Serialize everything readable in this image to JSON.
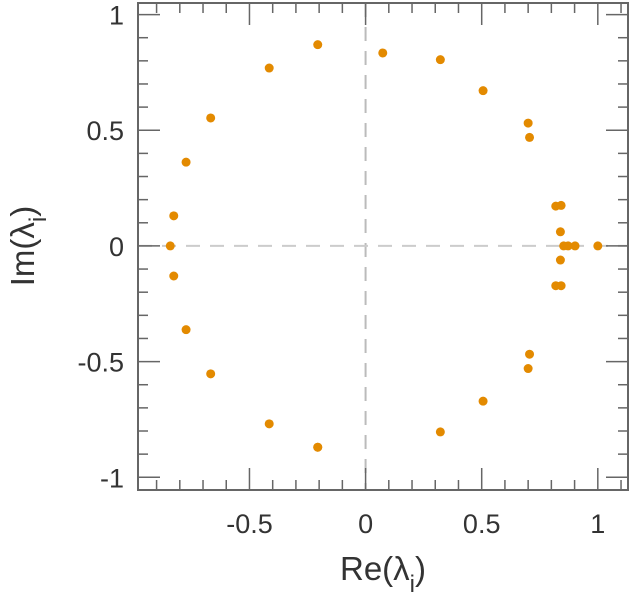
{
  "chart_data": {
    "type": "scatter",
    "title": "",
    "xlabel": "Re(λ",
    "xlabel_sub": "i",
    "ylabel": "Im(λ",
    "ylabel_sub": "i",
    "label_close": ")",
    "xlim": [
      -0.98,
      1.13
    ],
    "ylim": [
      -1.055,
      1.05
    ],
    "xticks": [
      -0.5,
      0,
      0.5,
      1
    ],
    "xtick_labels": [
      "-0.5",
      "0",
      "0.5",
      "1"
    ],
    "yticks": [
      -1,
      -0.5,
      0,
      0.5,
      1
    ],
    "ytick_labels": [
      "-1",
      "-0.5",
      "0",
      "0.5",
      "1"
    ],
    "grid": false,
    "reference_lines": {
      "x": 0,
      "y": 0,
      "style": "dashed"
    },
    "marker_color": "#E38A00",
    "points": [
      {
        "x": -0.206,
        "y": 0.87
      },
      {
        "x": -0.415,
        "y": 0.769
      },
      {
        "x": -0.667,
        "y": 0.553
      },
      {
        "x": -0.773,
        "y": 0.362
      },
      {
        "x": -0.826,
        "y": 0.13
      },
      {
        "x": -0.841,
        "y": 0.0
      },
      {
        "x": -0.826,
        "y": -0.13
      },
      {
        "x": -0.773,
        "y": -0.362
      },
      {
        "x": -0.667,
        "y": -0.553
      },
      {
        "x": -0.415,
        "y": -0.769
      },
      {
        "x": -0.206,
        "y": -0.87
      },
      {
        "x": 0.074,
        "y": 0.834
      },
      {
        "x": 0.322,
        "y": 0.805
      },
      {
        "x": 0.506,
        "y": 0.671
      },
      {
        "x": 0.7,
        "y": 0.531
      },
      {
        "x": 0.706,
        "y": 0.469
      },
      {
        "x": 0.819,
        "y": 0.172
      },
      {
        "x": 0.842,
        "y": 0.175
      },
      {
        "x": 0.839,
        "y": 0.061
      },
      {
        "x": 0.853,
        "y": 0.0
      },
      {
        "x": 0.872,
        "y": 0.0
      },
      {
        "x": 0.902,
        "y": 0.0
      },
      {
        "x": 1.0,
        "y": 0.0
      },
      {
        "x": 0.839,
        "y": -0.061
      },
      {
        "x": 0.819,
        "y": -0.172
      },
      {
        "x": 0.842,
        "y": -0.172
      },
      {
        "x": 0.706,
        "y": -0.468
      },
      {
        "x": 0.7,
        "y": -0.53
      },
      {
        "x": 0.506,
        "y": -0.671
      },
      {
        "x": 0.322,
        "y": -0.804
      },
      {
        "x": -0.206,
        "y": -0.87
      }
    ]
  }
}
